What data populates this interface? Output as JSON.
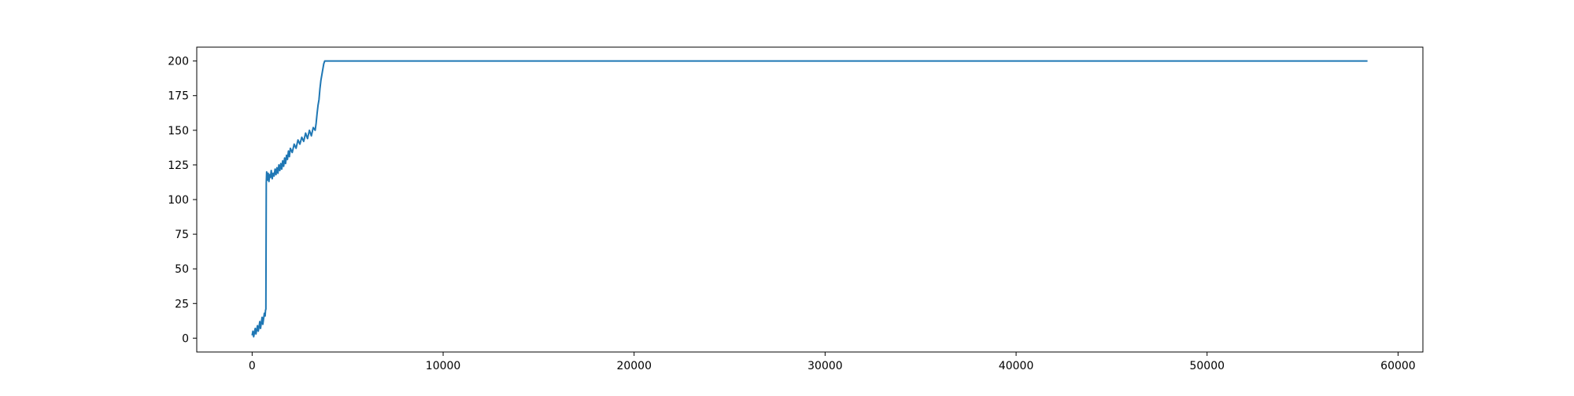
{
  "chart_data": {
    "type": "line",
    "title": "",
    "xlabel": "",
    "ylabel": "",
    "xlim": [
      -2900,
      61300
    ],
    "ylim": [
      -10,
      210
    ],
    "x_ticks": [
      0,
      10000,
      20000,
      30000,
      40000,
      50000,
      60000
    ],
    "x_tick_labels": [
      "0",
      "10000",
      "20000",
      "30000",
      "40000",
      "50000",
      "60000"
    ],
    "y_ticks": [
      0,
      25,
      50,
      75,
      100,
      125,
      150,
      175,
      200
    ],
    "y_tick_labels": [
      "0",
      "25",
      "50",
      "75",
      "100",
      "125",
      "150",
      "175",
      "200"
    ],
    "grid": false,
    "legend": "none",
    "series": [
      {
        "color": "#1f77b4",
        "x": [
          0,
          40,
          80,
          120,
          160,
          200,
          240,
          280,
          320,
          360,
          400,
          440,
          480,
          520,
          560,
          600,
          640,
          680,
          700,
          720,
          740,
          760,
          800,
          840,
          880,
          920,
          960,
          1000,
          1050,
          1100,
          1150,
          1200,
          1250,
          1300,
          1350,
          1400,
          1450,
          1500,
          1550,
          1600,
          1650,
          1700,
          1750,
          1800,
          1850,
          1900,
          1950,
          2000,
          2100,
          2200,
          2300,
          2400,
          2500,
          2600,
          2700,
          2800,
          2900,
          3000,
          3100,
          3200,
          3300,
          3350,
          3400,
          3450,
          3500,
          3550,
          3600,
          3650,
          3700,
          3750,
          3800,
          3850,
          3900,
          3950,
          4000,
          58400
        ],
        "y": [
          2,
          5,
          1,
          4,
          7,
          3,
          6,
          9,
          5,
          8,
          12,
          7,
          11,
          15,
          10,
          14,
          18,
          16,
          20,
          21,
          112,
          120,
          114,
          119,
          113,
          118,
          116,
          121,
          115,
          119,
          117,
          122,
          118,
          123,
          119,
          125,
          121,
          126,
          122,
          128,
          124,
          130,
          126,
          132,
          129,
          135,
          131,
          137,
          134,
          140,
          137,
          143,
          140,
          145,
          142,
          148,
          144,
          150,
          146,
          152,
          150,
          155,
          162,
          168,
          172,
          180,
          186,
          190,
          194,
          198,
          200,
          200,
          200,
          200,
          200,
          200
        ]
      }
    ]
  }
}
